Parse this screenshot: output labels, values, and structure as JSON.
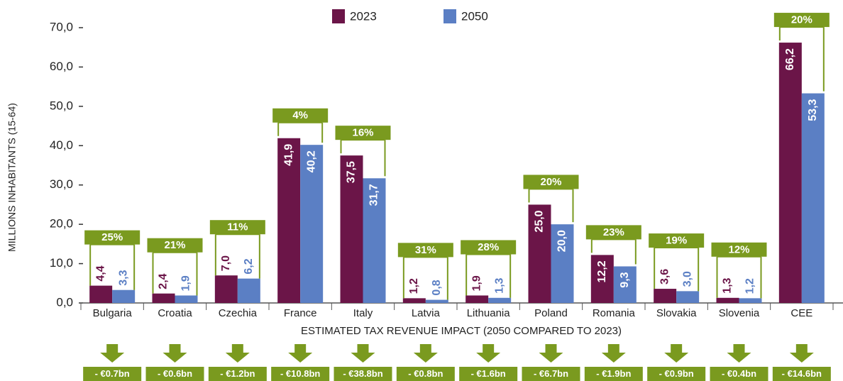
{
  "chart_data": {
    "type": "bar",
    "y_label": "MILLIONS INHABITANTS (15-64)",
    "x_label": "ESTIMATED TAX REVENUE IMPACT (2050 COMPARED TO 2023)",
    "categories": [
      "Bulgaria",
      "Croatia",
      "Czechia",
      "France",
      "Italy",
      "Latvia",
      "Lithuania",
      "Poland",
      "Romania",
      "Slovakia",
      "Slovenia",
      "CEE"
    ],
    "series": [
      {
        "name": "2023",
        "color": "#6b1548",
        "values": [
          4.4,
          2.4,
          7.0,
          41.9,
          37.5,
          1.2,
          1.9,
          25.0,
          12.2,
          3.6,
          1.3,
          66.2
        ],
        "value_labels": [
          "4,4",
          "2,4",
          "7,0",
          "41,9",
          "37,5",
          "1,2",
          "1,9",
          "25,0",
          "12,2",
          "3,6",
          "1,3",
          "66,2"
        ]
      },
      {
        "name": "2050",
        "color": "#5b7fc4",
        "values": [
          3.3,
          1.9,
          6.2,
          40.2,
          31.7,
          0.8,
          1.3,
          20.0,
          9.3,
          3.0,
          1.2,
          53.3
        ],
        "value_labels": [
          "3,3",
          "1,9",
          "6,2",
          "40,2",
          "31,7",
          "0,8",
          "1,3",
          "20,0",
          "9,3",
          "3,0",
          "1,2",
          "53,3"
        ]
      }
    ],
    "change_labels": [
      "25%",
      "21%",
      "11%",
      "4%",
      "16%",
      "31%",
      "28%",
      "20%",
      "23%",
      "19%",
      "12%",
      "20%"
    ],
    "tax_impact_labels": [
      "- €0.7bn",
      "- €0.6bn",
      "- €1.2bn",
      "- €10.8bn",
      "- €38.8bn",
      "- €0.8bn",
      "- €1.6bn",
      "- €6.7bn",
      "- €1.9bn",
      "- €0.9bn",
      "- €0.4bn",
      "- €14.6bn"
    ],
    "annotation_color": "#7a9a1f",
    "ylim": [
      0,
      70
    ],
    "yticks": [
      {
        "value": 0,
        "label": "0,0"
      },
      {
        "value": 10,
        "label": "10,0"
      },
      {
        "value": 20,
        "label": "20,0"
      },
      {
        "value": 30,
        "label": "30,0"
      },
      {
        "value": 40,
        "label": "40,0"
      },
      {
        "value": 50,
        "label": "50,0"
      },
      {
        "value": 60,
        "label": "60,0"
      },
      {
        "value": 70,
        "label": "70,0"
      }
    ],
    "grid": false
  }
}
